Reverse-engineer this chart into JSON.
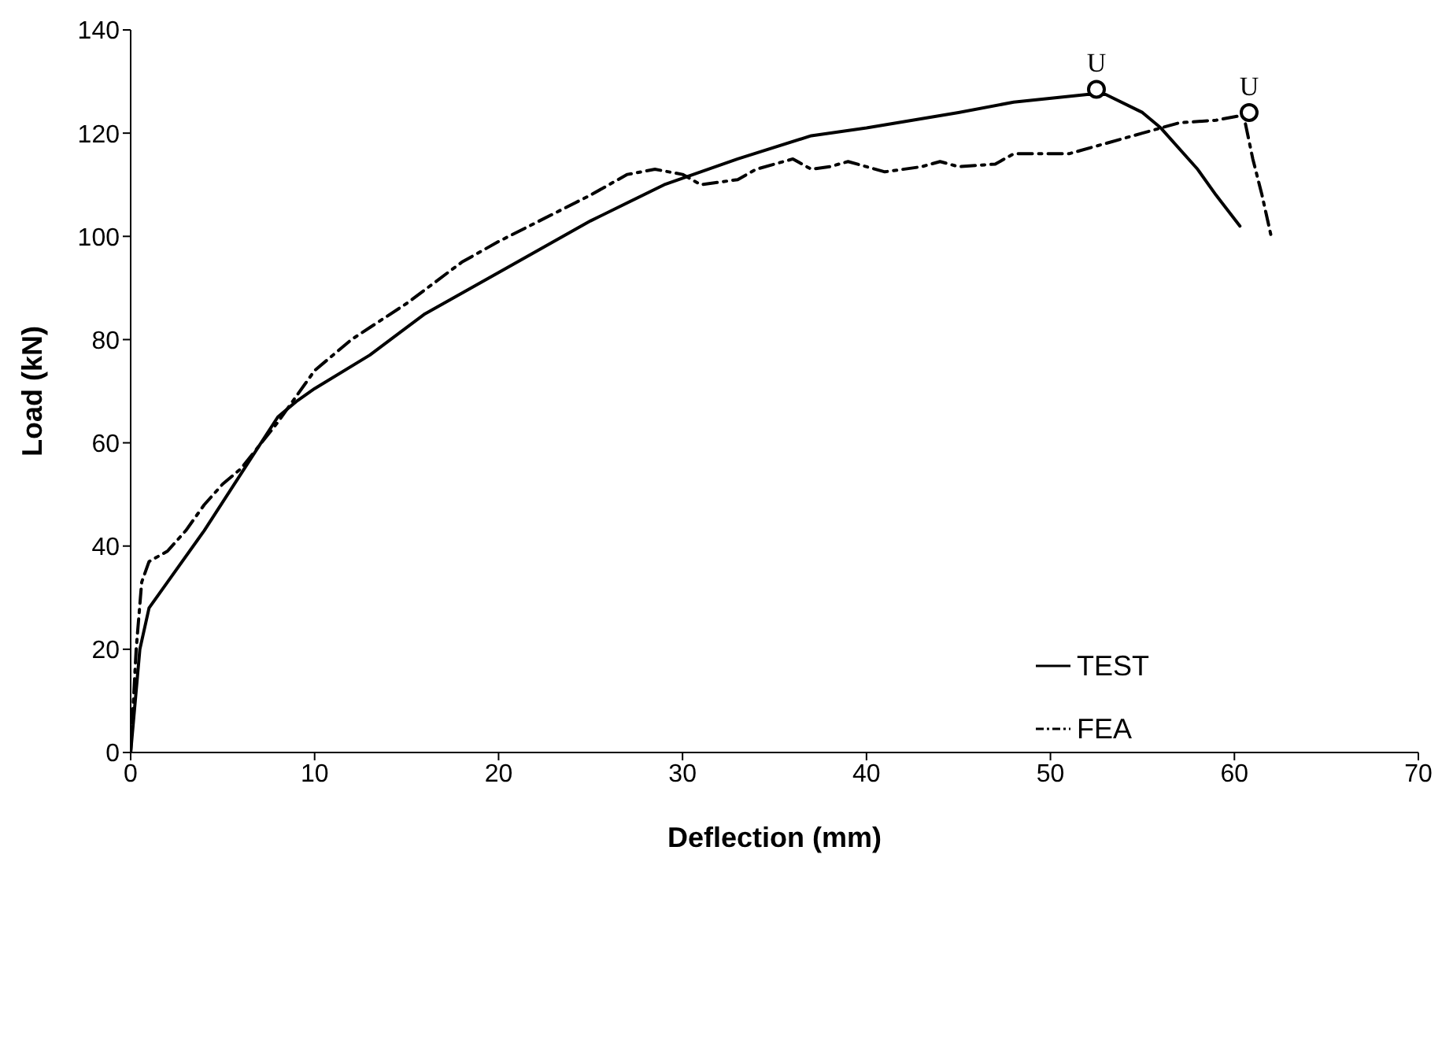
{
  "chart_data": {
    "type": "line",
    "xlabel": "Deflection (mm)",
    "ylabel": "Load (kN)",
    "xlim": [
      0,
      70
    ],
    "xticks": [
      0,
      10,
      20,
      30,
      40,
      50,
      60,
      70
    ],
    "ylim": [
      0,
      140
    ],
    "yticks": [
      0,
      20,
      40,
      60,
      80,
      100,
      120,
      140
    ],
    "grid": false,
    "legend": "bottom right",
    "marker": "none",
    "series": [
      {
        "name": "TEST",
        "color": "#000000",
        "line_style": "solid",
        "x": [
          0,
          0.5,
          1,
          2,
          4,
          6,
          8,
          9,
          10,
          13,
          16,
          20,
          25,
          29,
          33,
          37,
          40,
          45,
          48,
          52,
          53,
          55,
          56,
          58,
          59,
          60.3
        ],
        "values": [
          0,
          20,
          28,
          33,
          43,
          54,
          65,
          68,
          70.5,
          77,
          85,
          93,
          103,
          110,
          115,
          119.5,
          121,
          124,
          126,
          127.5,
          127.5,
          124,
          121,
          113,
          108,
          102
        ]
      },
      {
        "name": "FEA",
        "color": "#000000",
        "line_style": "dashdot",
        "x": [
          0,
          0.3,
          0.6,
          1,
          2,
          3,
          4,
          5,
          6,
          8,
          10,
          12,
          15,
          18,
          20,
          25,
          27,
          28.5,
          30,
          31,
          33,
          34,
          36,
          37,
          38,
          39,
          41,
          43,
          44,
          45,
          47,
          48,
          50,
          51,
          53,
          55,
          57,
          59,
          60.5,
          61,
          61.5,
          62
        ],
        "values": [
          0,
          20,
          33,
          37,
          39,
          43,
          48,
          52,
          55,
          64,
          74,
          80,
          87,
          95,
          99,
          108,
          112,
          113,
          112,
          110,
          111,
          113,
          115,
          113,
          113.5,
          114.5,
          112.5,
          113.5,
          114.5,
          113.5,
          114,
          116,
          116,
          116,
          118,
          120,
          122,
          122.5,
          123.5,
          115,
          108,
          100
        ]
      }
    ],
    "annotations": [
      {
        "text": "U",
        "x": 52.5,
        "y": 128.5
      },
      {
        "text": "U",
        "x": 60.8,
        "y": 124
      }
    ]
  }
}
